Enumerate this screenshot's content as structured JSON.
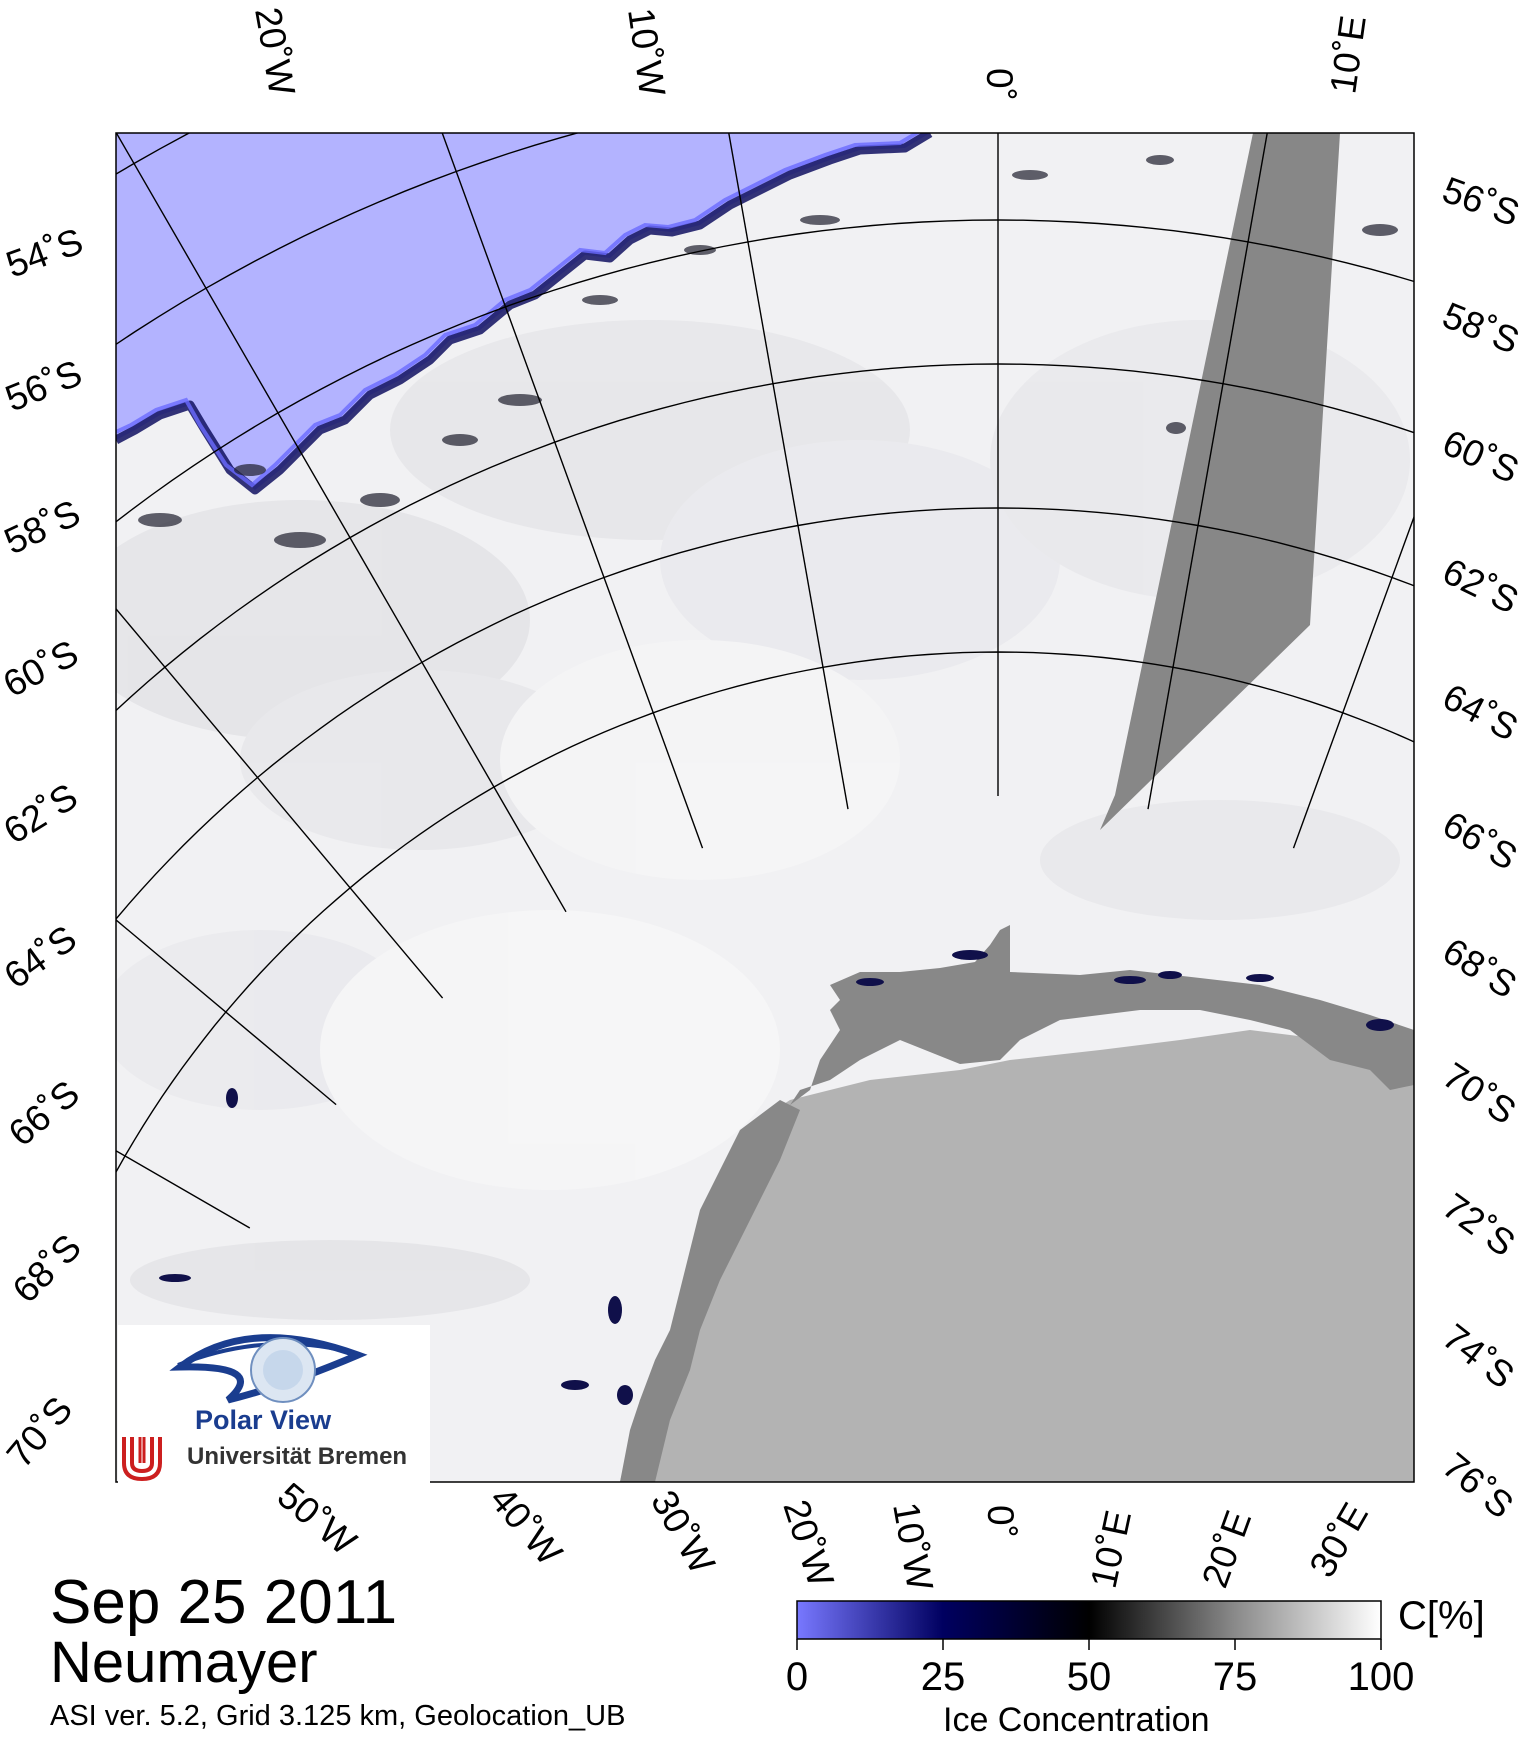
{
  "header": {
    "date": "Sep 25 2011",
    "station": "Neumayer",
    "footnote": "ASI ver. 5.2,  Grid 3.125 km, Geolocation_UB"
  },
  "map": {
    "top_longitude_labels": [
      "20˚W",
      "10˚W",
      "0˚",
      "10˚E"
    ],
    "left_latitude_labels": [
      "54˚S",
      "56˚S",
      "58˚S",
      "60˚S",
      "62˚S",
      "64˚S",
      "66˚S",
      "68˚S",
      "70˚S"
    ],
    "right_latitude_labels": [
      "56˚S",
      "58˚S",
      "60˚S",
      "62˚S",
      "64˚S",
      "66˚S",
      "68˚S",
      "70˚S",
      "72˚S",
      "74˚S",
      "76˚S"
    ],
    "bottom_longitude_labels": [
      "50˚W",
      "40˚W",
      "30˚W",
      "20˚W",
      "10˚W",
      "0˚",
      "10˚E",
      "20˚E",
      "30˚E"
    ],
    "colors": {
      "open_water": "#b3b3ff",
      "land": "#b3b3b3",
      "ice_shelf": "#888888",
      "missing_data": "#878787",
      "graticule": "#000000"
    }
  },
  "logo": {
    "name": "Polar View",
    "institution": "Universität Bremen",
    "eye_color": "#1a3d8f",
    "mark_color": "#cc1f1f"
  },
  "colorbar": {
    "unit_label": "C[%]",
    "caption": "Ice Concentration",
    "ticks": [
      "0",
      "25",
      "50",
      "75",
      "100"
    ],
    "stops": [
      "#7878ff",
      "#000060",
      "#000000",
      "#8a8a8a",
      "#ffffff"
    ]
  }
}
